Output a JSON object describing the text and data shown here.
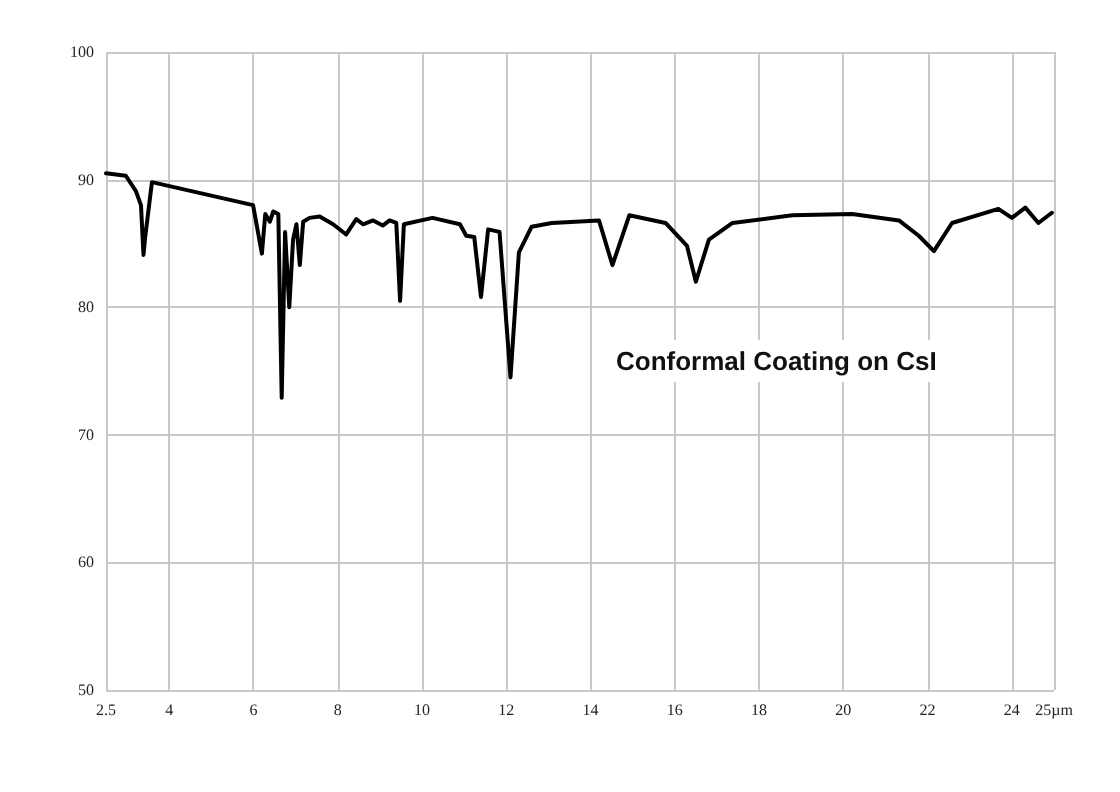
{
  "chart_data": {
    "type": "line",
    "title": "Conformal Coating on CsI",
    "x": [
      2.5,
      2.97,
      3.21,
      3.33,
      3.39,
      3.43,
      3.59,
      5.99,
      6.2,
      6.28,
      6.39,
      6.47,
      6.59,
      6.67,
      6.75,
      6.85,
      6.94,
      7.02,
      7.1,
      7.18,
      7.33,
      7.57,
      7.89,
      8.2,
      8.44,
      8.6,
      8.84,
      9.07,
      9.23,
      9.39,
      9.48,
      9.57,
      10.25,
      10.9,
      11.05,
      11.24,
      11.4,
      11.57,
      11.84,
      12.1,
      12.3,
      12.6,
      13.08,
      14.2,
      14.52,
      14.92,
      15.78,
      16.29,
      16.5,
      16.81,
      17.37,
      18.79,
      20.21,
      21.32,
      21.79,
      22.15,
      22.58,
      23.68,
      24.0,
      24.32,
      24.63,
      24.95
    ],
    "series": [
      {
        "color": "#000000",
        "values": [
          90.5,
          90.3,
          89.1,
          88.0,
          84.1,
          85.5,
          89.8,
          88.0,
          84.2,
          87.3,
          86.7,
          87.5,
          87.3,
          72.9,
          85.9,
          80.0,
          85.3,
          86.5,
          83.3,
          86.7,
          87.0,
          87.1,
          86.5,
          85.7,
          86.9,
          86.5,
          86.8,
          86.4,
          86.8,
          86.6,
          80.5,
          86.5,
          87.0,
          86.5,
          85.6,
          85.5,
          80.8,
          86.1,
          85.9,
          74.5,
          84.3,
          86.3,
          86.6,
          86.8,
          83.3,
          87.2,
          86.6,
          84.8,
          82.0,
          85.3,
          86.6,
          87.2,
          87.3,
          86.8,
          85.6,
          84.4,
          86.6,
          87.7,
          87.0,
          87.8,
          86.6,
          87.4
        ]
      }
    ],
    "xlim": [
      2.5,
      25
    ],
    "xticks": [
      2.5,
      4,
      6,
      8,
      10,
      12,
      14,
      16,
      18,
      20,
      22,
      24,
      {
        "value": 25,
        "label": "25µm"
      }
    ],
    "ylim": [
      50,
      100
    ],
    "yticks": [
      50,
      60,
      70,
      80,
      90,
      100
    ],
    "grid": true,
    "marker": "none",
    "line_style": "solid"
  }
}
